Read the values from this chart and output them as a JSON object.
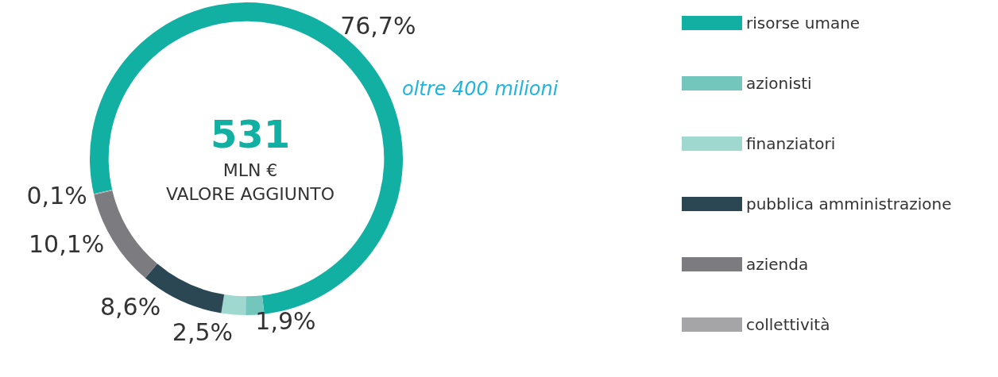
{
  "chart_data": {
    "type": "donut",
    "title": "531",
    "subtitle": "MLN €\nVALORE AGGIUNTO",
    "categories": [
      "risorse umane",
      "azionisti",
      "finanziatori",
      "pubblica amministrazione",
      "azienda",
      "collettività"
    ],
    "values": [
      76.7,
      1.9,
      2.5,
      8.6,
      10.1,
      0.1
    ],
    "value_labels": [
      "76,7%",
      "1,9%",
      "2,5%",
      "8,6%",
      "10,1%",
      "0,1%"
    ],
    "colors": [
      "#12b0a3",
      "#72c6bb",
      "#9fd8ce",
      "#2b4753",
      "#7c7c80",
      "#a5a5a8"
    ],
    "annotations": [
      "oltre 400 milioni"
    ],
    "legend": "right"
  }
}
